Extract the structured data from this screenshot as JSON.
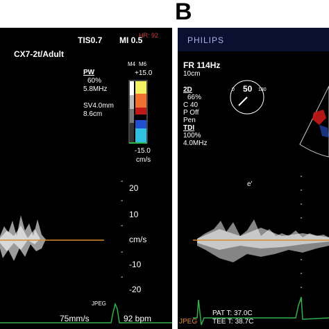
{
  "panel_label": "B",
  "panel_a": {
    "header": {
      "tis": "TIS0.7",
      "mi": "MI 0.5",
      "hr": "HR: 92"
    },
    "probe": "CX7-2t/Adult",
    "pw": {
      "title": "PW",
      "gain": "60%",
      "freq": "5.8MHz",
      "sv": "SV4.0mm",
      "depth": "8.6cm"
    },
    "colorbar": {
      "top_left": "M4",
      "top_right": "M6",
      "max": "+15.0",
      "min": "-15.0",
      "unit": "cm/s"
    },
    "scale": {
      "ticks": [
        "20",
        "10",
        "cm/s",
        "-10",
        "-20"
      ],
      "dashes": [
        "-",
        "-",
        "-",
        "-",
        "-"
      ]
    },
    "footer": {
      "sweep": "75mm/s",
      "format": "JPEG",
      "bpm": "92 bpm"
    }
  },
  "panel_b": {
    "brand": "PHILIPS",
    "fr": "FR 114Hz",
    "depth": "10cm",
    "mode2d": {
      "title": "2D",
      "gain": "66%",
      "c": "C 40",
      "p": "P Off",
      "pen": "Pen"
    },
    "tdi": {
      "title": "TDI",
      "gain": "100%",
      "freq": "4.0MHz"
    },
    "dial": {
      "left": "0",
      "center": "50",
      "right": "180"
    },
    "wave_label": "e'",
    "footer": {
      "pat": "PAT T: 37.0C",
      "tee": "TEE T: 38.7C",
      "format": "JPEG"
    }
  },
  "colors": {
    "baseline": "#d98a2a",
    "ecg": "#2fb24a",
    "orange_text": "#e08a30",
    "hr_text": "#d04040"
  }
}
